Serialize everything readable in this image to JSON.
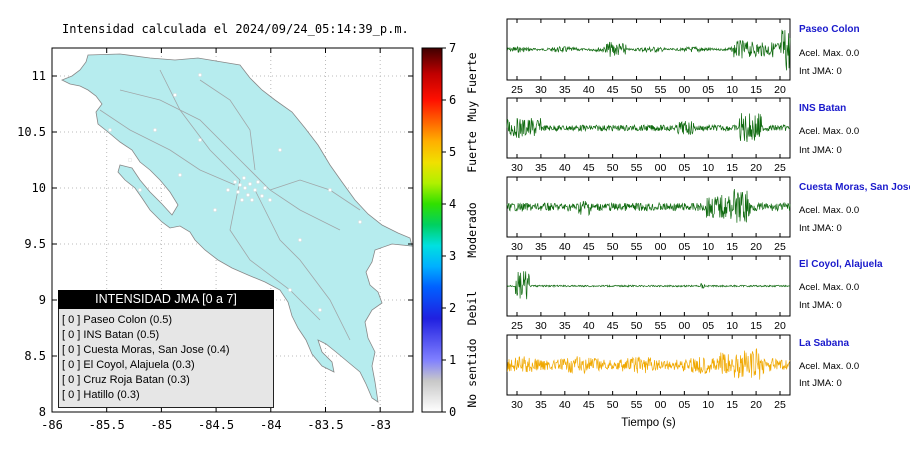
{
  "title": "Intensidad calculada el 2024/09/24_05:14:39_p.m.",
  "colors": {
    "land": "#b6ecee",
    "trace_green": "#0f6a0f",
    "trace_orange": "#f0a800",
    "station_name": "#1a1acc"
  },
  "chart_data": [
    {
      "type": "map",
      "lat_ticks": [
        "11",
        "10.5",
        "10",
        "9.5",
        "9",
        "8.5",
        "8"
      ],
      "lon_ticks": [
        "-86",
        "-85.5",
        "-85",
        "-84.5",
        "-84",
        "-83.5",
        "-83"
      ],
      "lat_range": [
        8,
        11.25
      ],
      "lon_range": [
        -86,
        -82.7
      ],
      "legend": {
        "title": "INTENSIDAD JMA [0 a 7]",
        "items": [
          "[ 0 ]  Paseo Colon (0.5)",
          "[ 0 ]  INS Batan (0.5)",
          "[ 0 ]  Cuesta Moras, San Jose (0.4)",
          "[ 0 ]  El Coyol, Alajuela (0.3)",
          "[ 0 ]  Cruz Roja Batan (0.3)",
          "[ 0 ]  Hatillo (0.3)"
        ]
      }
    },
    {
      "type": "colorbar",
      "range": [
        0,
        7
      ],
      "ticks": [
        "0",
        "1",
        "2",
        "3",
        "4",
        "5",
        "6",
        "7"
      ],
      "category_labels": [
        "No sentido",
        "Debil",
        "Moderado",
        "Fuerte",
        "Muy Fuerte"
      ]
    },
    {
      "type": "line",
      "xlabel": "Tiempo (s)",
      "series": [
        {
          "name": "Paseo Colon",
          "acc": "Acel. Max. 0.0",
          "int": "Int JMA: 0",
          "ticks": [
            "25",
            "30",
            "35",
            "40",
            "45",
            "50",
            "55",
            "00",
            "05",
            "10",
            "15",
            "20"
          ],
          "color": "trace_green"
        },
        {
          "name": "INS Batan",
          "acc": "Acel. Max. 0.0",
          "int": "Int JMA: 0",
          "ticks": [
            "30",
            "35",
            "40",
            "45",
            "50",
            "55",
            "00",
            "05",
            "10",
            "15",
            "20",
            "25"
          ],
          "color": "trace_green"
        },
        {
          "name": "Cuesta Moras, San Jose",
          "acc": "Acel. Max. 0.0",
          "int": "Int JMA: 0",
          "ticks": [
            "30",
            "35",
            "40",
            "45",
            "50",
            "55",
            "00",
            "05",
            "10",
            "15",
            "20",
            "25"
          ],
          "color": "trace_green"
        },
        {
          "name": "El Coyol, Alajuela",
          "acc": "Acel. Max. 0.0",
          "int": "Int JMA: 0",
          "ticks": [
            "25",
            "30",
            "35",
            "40",
            "45",
            "50",
            "55",
            "00",
            "05",
            "10",
            "15",
            "20"
          ],
          "color": "trace_green"
        },
        {
          "name": "La Sabana",
          "acc": "Acel. Max. 0.0",
          "int": "Int JMA: 0",
          "ticks": [
            "30",
            "35",
            "40",
            "45",
            "50",
            "55",
            "00",
            "05",
            "10",
            "15",
            "20",
            "25"
          ],
          "color": "trace_orange"
        }
      ]
    }
  ]
}
